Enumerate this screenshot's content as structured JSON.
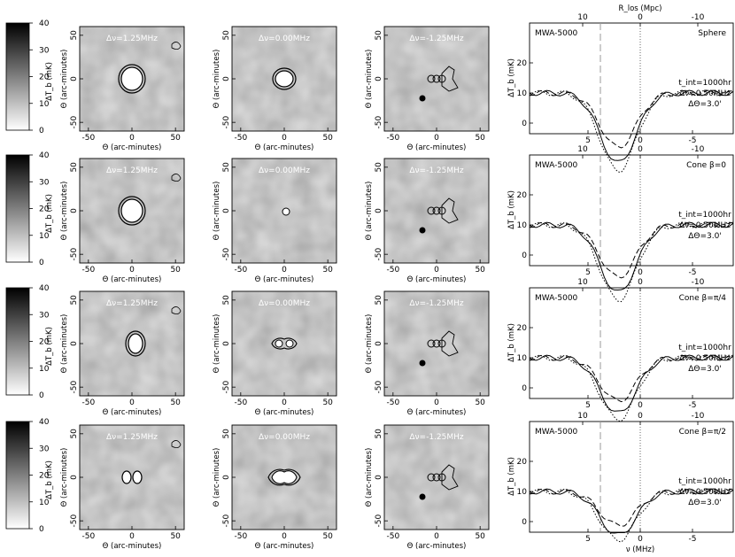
{
  "colorbar": {
    "label": "ΔT_b (mK)",
    "ticks": [
      "0",
      "10",
      "20",
      "30",
      "40"
    ]
  },
  "map_axis": {
    "xlabel": "Θ (arc-minutes)",
    "ylabel": "Θ (arc-minutes)",
    "ticks": [
      "-50",
      "0",
      "50"
    ]
  },
  "map_labels": [
    "Δν=1.25MHz",
    "Δν=0.00MHz",
    "Δν=-1.25MHz"
  ],
  "profile": {
    "ylabel": "ΔT_b (mK)",
    "yticks": [
      "0",
      "10",
      "20"
    ],
    "xticks": [
      "5",
      "0",
      "-5"
    ],
    "top_xticks": [
      "10",
      "0",
      "-10"
    ],
    "top_xlabel": "R_los (Mpc)",
    "bottom_xlabel": "ν (MHz)",
    "instrument": "MWA-5000",
    "params": [
      "t_int=1000hr",
      "Δν=0.50MHz",
      "ΔΘ=3.0'"
    ]
  },
  "rows": [
    {
      "model": "Sphere"
    },
    {
      "model": "Cone β=0"
    },
    {
      "model": "Cone β=π/4"
    },
    {
      "model": "Cone β=π/2"
    }
  ],
  "colors": {
    "background": "#ffffff",
    "map_gray": "#8a8a8a",
    "ink": "#000000",
    "dashed_marker": "#999999"
  }
}
